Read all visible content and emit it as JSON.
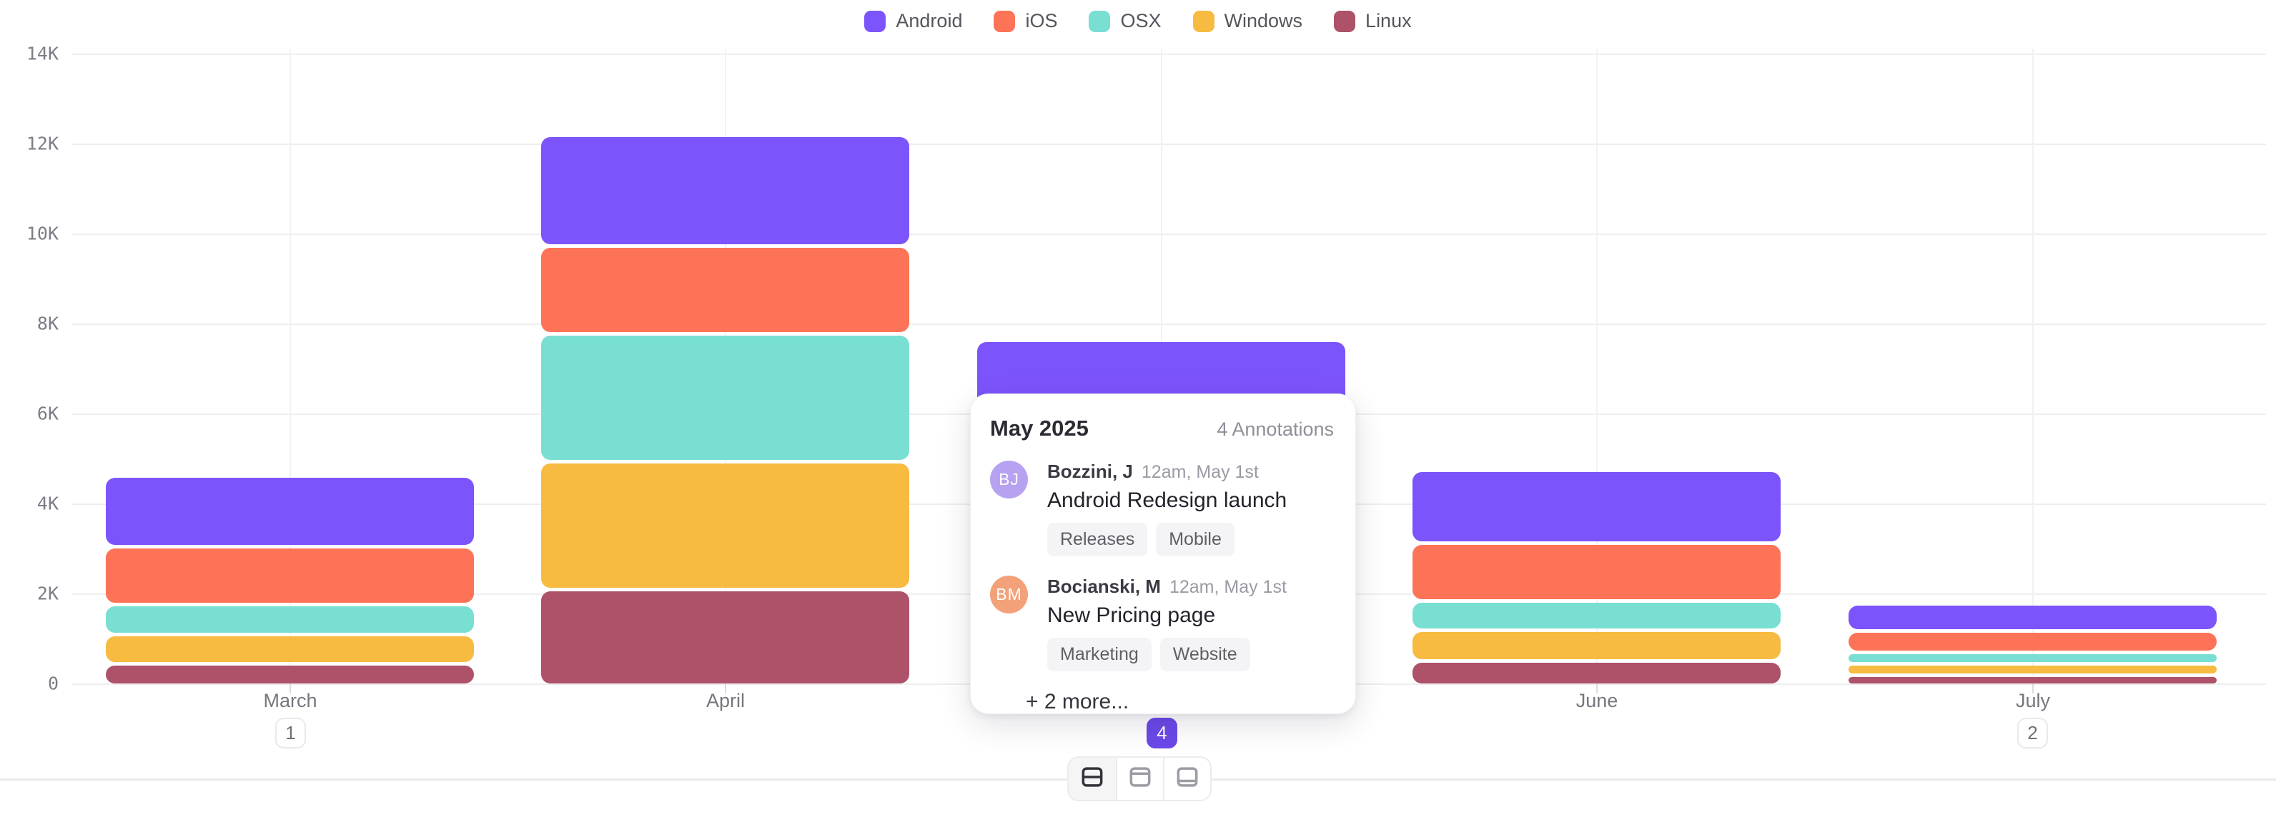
{
  "chart_data": {
    "type": "bar",
    "stacked": true,
    "categories": [
      "March",
      "April",
      "May",
      "June",
      "July"
    ],
    "series": [
      {
        "name": "Android",
        "color": "#7c54fb",
        "values": [
          1500,
          2380,
          1950,
          1540,
          520
        ]
      },
      {
        "name": "iOS",
        "color": "#fc7357",
        "values": [
          1200,
          1870,
          1450,
          1210,
          390
        ]
      },
      {
        "name": "OSX",
        "color": "#79dfd2",
        "values": [
          590,
          2760,
          1350,
          570,
          175
        ]
      },
      {
        "name": "Windows",
        "color": "#f6bb40",
        "values": [
          570,
          2760,
          1400,
          600,
          175
        ]
      },
      {
        "name": "Linux",
        "color": "#ad5269",
        "values": [
          400,
          2050,
          1120,
          460,
          150
        ]
      }
    ],
    "title": "",
    "xlabel": "",
    "ylabel": "",
    "ylim": [
      0,
      14000
    ],
    "y_tick_labels": [
      "14K",
      "12K",
      "10K",
      "8K",
      "6K",
      "4K",
      "2K",
      "0"
    ],
    "grid": true,
    "legend_position": "top"
  },
  "x_axis": {
    "badges": [
      {
        "category": "March",
        "count": "1",
        "selected": false
      },
      {
        "category": "May",
        "count": "4",
        "selected": true
      },
      {
        "category": "July",
        "count": "2",
        "selected": false
      }
    ],
    "selected_badge_color": "#6b48e8"
  },
  "tooltip": {
    "title": "May 2025",
    "annotations_count_label": "4 Annotations",
    "annotations": [
      {
        "initials": "BJ",
        "avatar_color": "#b7a2f2",
        "author": "Bozzini, J",
        "time": "12am, May 1st",
        "text": "Android Redesign launch",
        "tags": [
          "Releases",
          "Mobile"
        ]
      },
      {
        "initials": "BM",
        "avatar_color": "#f2a179",
        "author": "Bocianski, M",
        "time": "12am, May 1st",
        "text": "New Pricing page",
        "tags": [
          "Marketing",
          "Website"
        ]
      }
    ],
    "more_label": "+ 2 more..."
  },
  "layout_switcher": {
    "options": [
      {
        "name": "split-horizontal",
        "active": true
      },
      {
        "name": "top-panel",
        "active": false
      },
      {
        "name": "bottom-panel",
        "active": false
      }
    ]
  }
}
